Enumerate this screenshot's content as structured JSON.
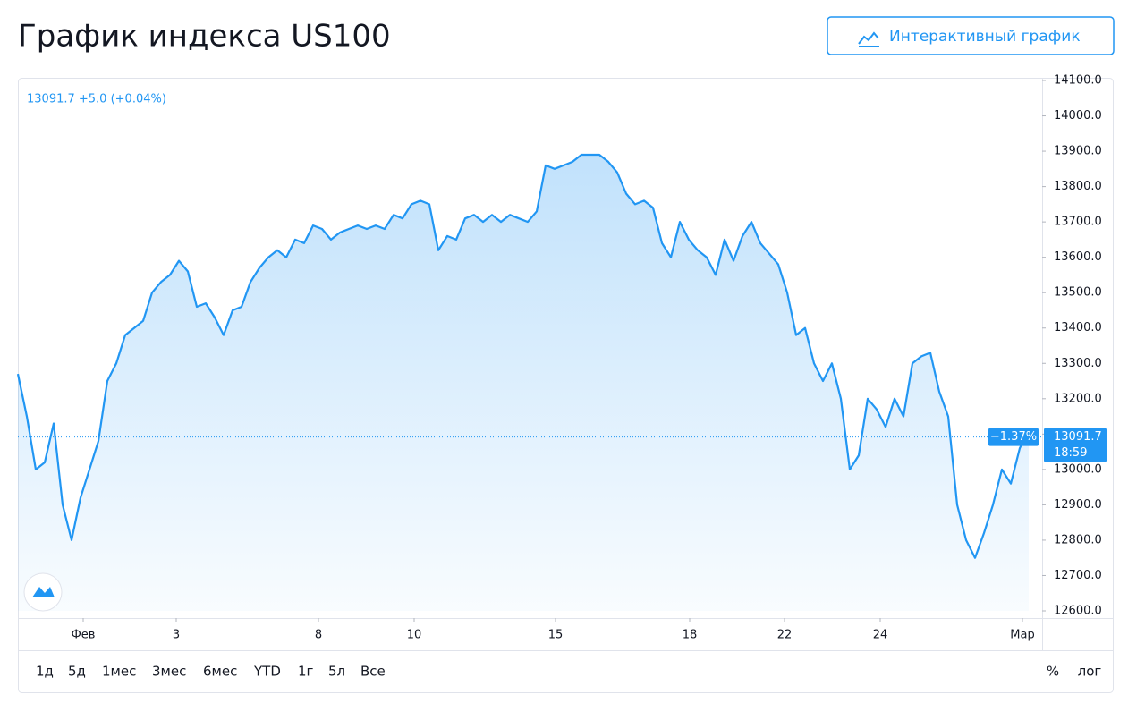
{
  "chart_data": {
    "type": "line",
    "title": "График индекса US100",
    "button": "Интерактивный график",
    "legend_text": "13091.7 +5.0 (+0.04%)",
    "color": "#2196f3",
    "values": [
      13270,
      13150,
      13000,
      13020,
      13130,
      12900,
      12800,
      12920,
      13000,
      13080,
      13250,
      13300,
      13380,
      13400,
      13420,
      13500,
      13530,
      13550,
      13590,
      13560,
      13460,
      13470,
      13430,
      13380,
      13450,
      13460,
      13530,
      13570,
      13600,
      13620,
      13600,
      13650,
      13640,
      13690,
      13680,
      13650,
      13670,
      13680,
      13690,
      13680,
      13690,
      13680,
      13720,
      13710,
      13750,
      13760,
      13750,
      13620,
      13660,
      13650,
      13710,
      13720,
      13700,
      13720,
      13700,
      13720,
      13710,
      13700,
      13730,
      13860,
      13850,
      13860,
      13870,
      13890,
      13890,
      13890,
      13870,
      13840,
      13780,
      13750,
      13760,
      13740,
      13640,
      13600,
      13700,
      13650,
      13620,
      13600,
      13550,
      13650,
      13590,
      13660,
      13700,
      13640,
      13610,
      13580,
      13500,
      13380,
      13400,
      13300,
      13250,
      13300,
      13200,
      13000,
      13040,
      13200,
      13170,
      13120,
      13200,
      13150,
      13300,
      13320,
      13330,
      13220,
      13150,
      12900,
      12800,
      12750,
      12820,
      12900,
      13000,
      12960,
      13060,
      13110
    ],
    "xlim": [
      0,
      114.5
    ],
    "xticks": [
      {
        "value": 7.3,
        "label": "Фев"
      },
      {
        "value": 17.7,
        "label": "3"
      },
      {
        "value": 33.6,
        "label": "8"
      },
      {
        "value": 44.3,
        "label": "10"
      },
      {
        "value": 60.1,
        "label": "15"
      },
      {
        "value": 75.1,
        "label": "18"
      },
      {
        "value": 85.7,
        "label": "22"
      },
      {
        "value": 96.4,
        "label": "24"
      },
      {
        "value": 112.3,
        "label": "Мар"
      }
    ],
    "ylim": [
      12600,
      14100
    ],
    "yticks": [
      {
        "value": 12600,
        "label": "12600.0"
      },
      {
        "value": 12700,
        "label": "12700.0"
      },
      {
        "value": 12800,
        "label": "12800.0"
      },
      {
        "value": 12900,
        "label": "12900.0"
      },
      {
        "value": 13000,
        "label": "13000.0"
      },
      {
        "value": 13100,
        "label": "13100.0"
      },
      {
        "value": 13200,
        "label": "13200.0"
      },
      {
        "value": 13300,
        "label": "13300.0"
      },
      {
        "value": 13400,
        "label": "13400.0"
      },
      {
        "value": 13500,
        "label": "13500.0"
      },
      {
        "value": 13600,
        "label": "13600.0"
      },
      {
        "value": 13700,
        "label": "13700.0"
      },
      {
        "value": 13800,
        "label": "13800.0"
      },
      {
        "value": 13900,
        "label": "13900.0"
      },
      {
        "value": 14000,
        "label": "14000.0"
      },
      {
        "value": 14100,
        "label": "14100.0"
      }
    ],
    "price_line": 13091.7,
    "change_tag": "−1.37%",
    "time_tag": "18:59",
    "ranges": [
      "1д",
      "5д",
      "1мес",
      "3мес",
      "6мес",
      "YTD",
      "1г",
      "5л",
      "Все"
    ],
    "scale_options": [
      "%",
      "лог"
    ]
  }
}
